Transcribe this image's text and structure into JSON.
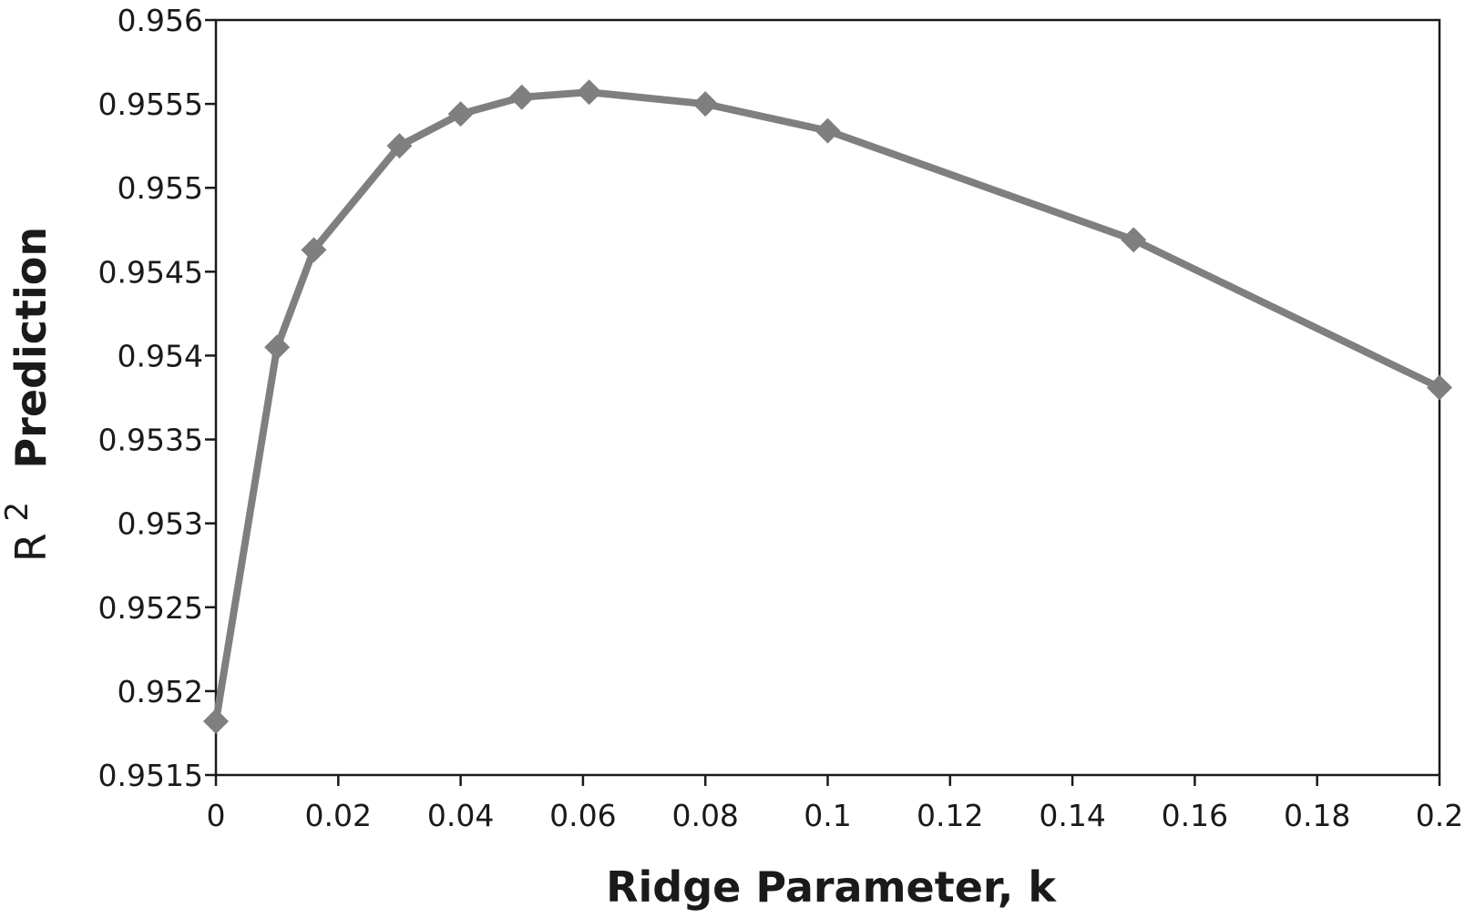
{
  "chart_data": {
    "type": "line",
    "xlabel": "Ridge Parameter, k",
    "ylabel": {
      "base": "R",
      "superscript": "2",
      "rest": "Prediction"
    },
    "xlim": [
      0,
      0.2
    ],
    "ylim": [
      0.9515,
      0.956
    ],
    "x_ticks": [
      "0",
      "0.02",
      "0.04",
      "0.06",
      "0.08",
      "0.1",
      "0.12",
      "0.14",
      "0.16",
      "0.18",
      "0.2"
    ],
    "y_ticks": [
      "0.9515",
      "0.952",
      "0.9525",
      "0.953",
      "0.9535",
      "0.954",
      "0.9545",
      "0.955",
      "0.9555",
      "0.956"
    ],
    "grid": false,
    "series": [
      {
        "marker": "diamond",
        "color": "#7f7f7f",
        "x": [
          0,
          0.01,
          0.016,
          0.03,
          0.04,
          0.05,
          0.061,
          0.08,
          0.1,
          0.15,
          0.2
        ],
        "y": [
          0.95182,
          0.95405,
          0.95463,
          0.95525,
          0.95544,
          0.95554,
          0.95557,
          0.9555,
          0.95534,
          0.95469,
          0.95381
        ]
      }
    ]
  },
  "colors": {
    "series": "#7f7f7f",
    "axis": "#1a1a1a",
    "background": "#ffffff"
  }
}
